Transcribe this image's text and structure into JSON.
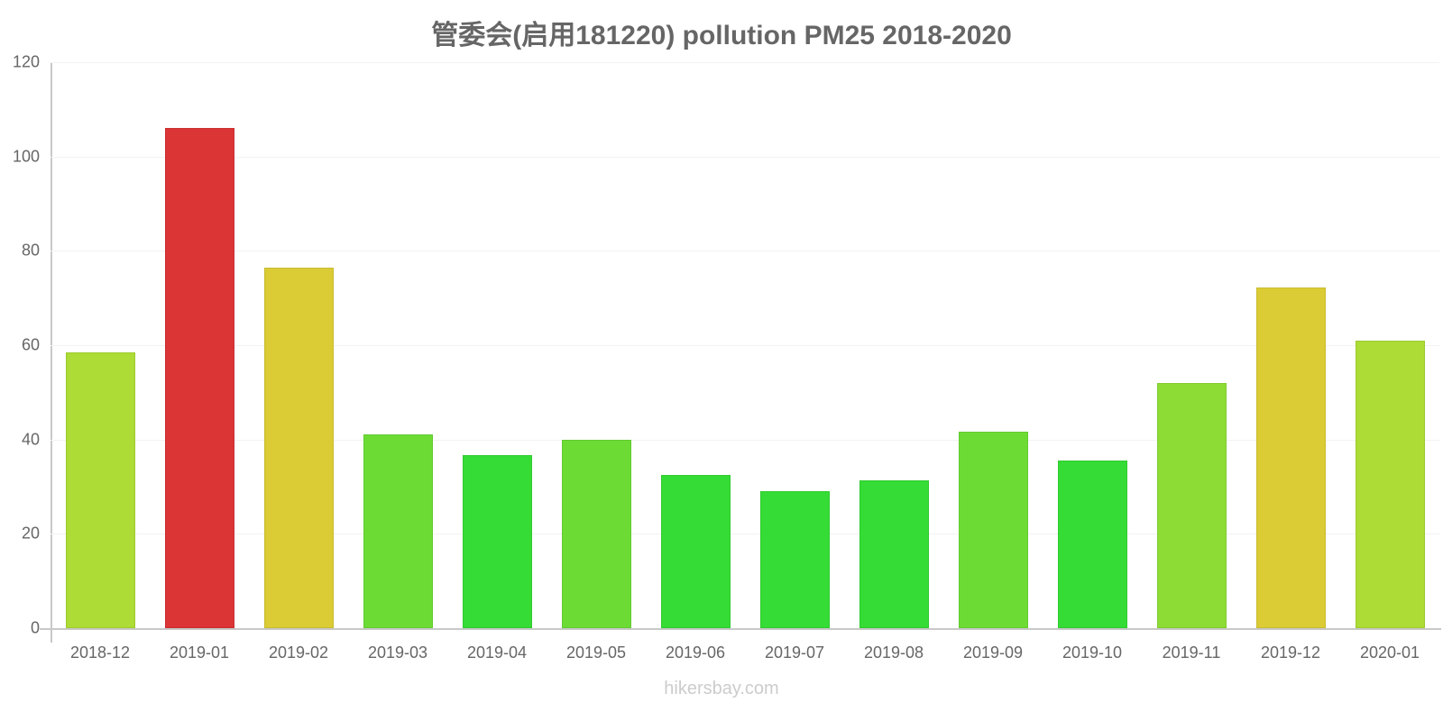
{
  "chart_data": {
    "type": "bar",
    "title": "管委会(启用181220) pollution PM25 2018-2020",
    "xlabel": "",
    "ylabel": "",
    "ylim": [
      0,
      120
    ],
    "yticks": [
      0,
      20,
      40,
      60,
      80,
      100,
      120
    ],
    "grid": true,
    "legend": null,
    "categories": [
      "2018-12",
      "2019-01",
      "2019-02",
      "2019-03",
      "2019-04",
      "2019-05",
      "2019-06",
      "2019-07",
      "2019-08",
      "2019-09",
      "2019-10",
      "2019-11",
      "2019-12",
      "2020-01"
    ],
    "values": [
      58.5,
      106,
      76.5,
      41,
      36.7,
      40,
      32.5,
      29,
      31.3,
      41.7,
      35.5,
      52,
      72.2,
      61
    ],
    "colors": [
      "#acdc35",
      "#db3535",
      "#dbcb35",
      "#6cdc35",
      "#35dc35",
      "#6cdc35",
      "#35dc35",
      "#35dc35",
      "#35dc35",
      "#6cdc35",
      "#35dc35",
      "#8cdc35",
      "#dbcb35",
      "#acdc35"
    ]
  },
  "footer": {
    "watermark": "hikersbay.com"
  }
}
